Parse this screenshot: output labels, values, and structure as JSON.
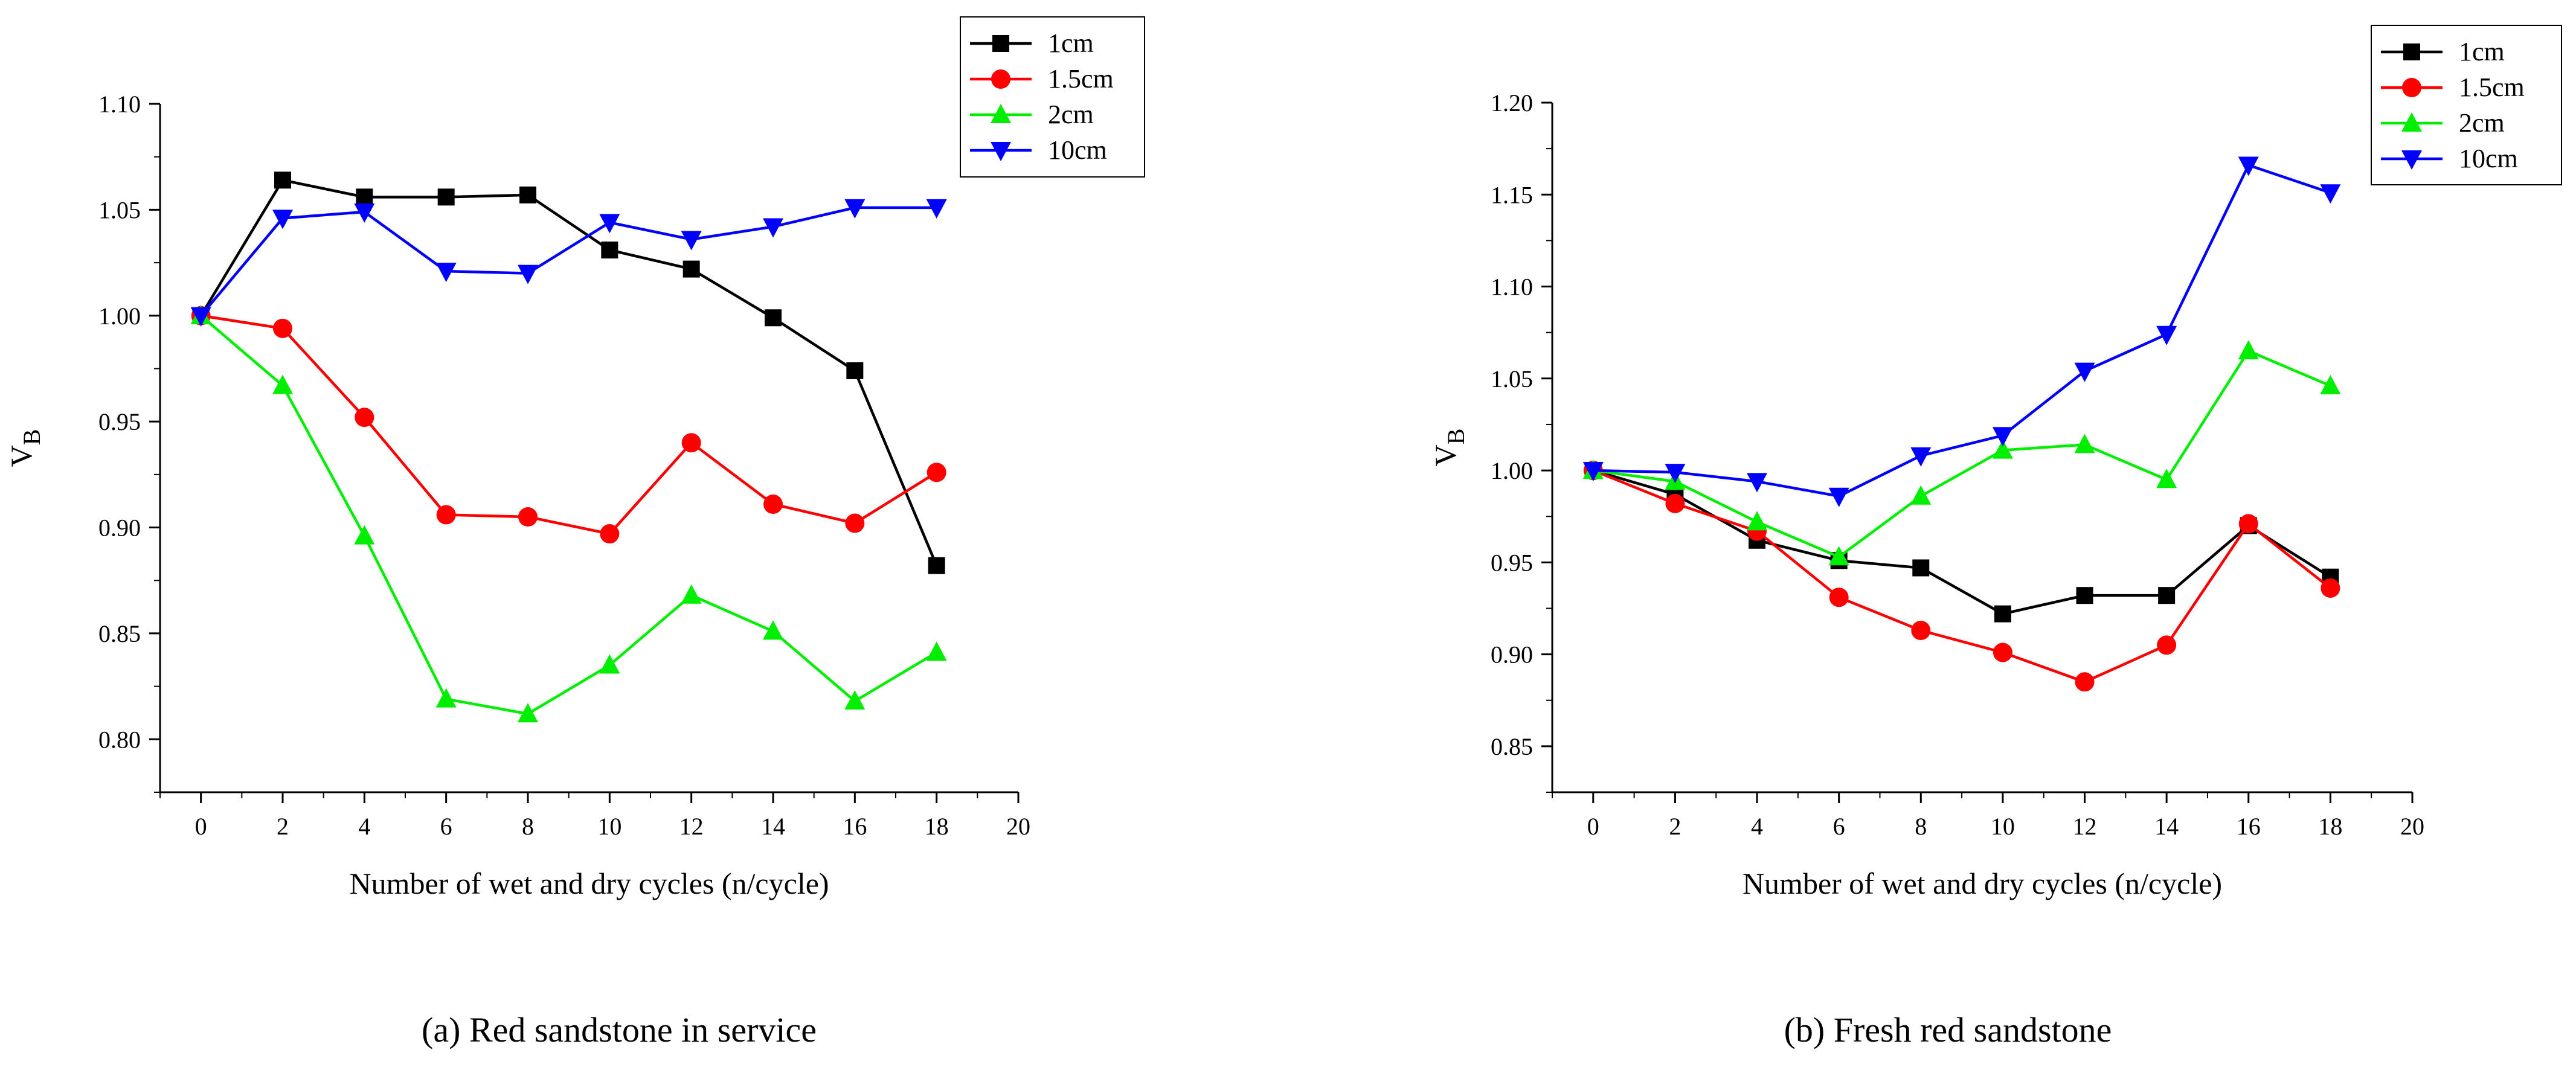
{
  "figure": {
    "caption_a": "(a)  Red sandstone in service",
    "caption_b": "(b)  Fresh red sandstone"
  },
  "chart_data": [
    {
      "type": "line",
      "xlabel": "Number of wet and dry cycles (n/cycle)",
      "ylabel": "V",
      "ylabel_sub": "B",
      "xlim": [
        -1,
        20
      ],
      "ylim": [
        0.775,
        1.1
      ],
      "xticks": [
        0,
        2,
        4,
        6,
        8,
        10,
        12,
        14,
        16,
        18,
        20
      ],
      "yticks": [
        0.8,
        0.85,
        0.9,
        0.95,
        1.0,
        1.05,
        1.1
      ],
      "legend_position": "top-right",
      "x": [
        0,
        2,
        4,
        6,
        8,
        10,
        12,
        14,
        16,
        18
      ],
      "series": [
        {
          "name": "1cm",
          "color": "#000000",
          "marker": "square",
          "values": [
            1.0,
            1.064,
            1.056,
            1.056,
            1.057,
            1.031,
            1.022,
            0.999,
            0.974,
            0.882
          ]
        },
        {
          "name": "1.5cm",
          "color": "#ff0000",
          "marker": "circle",
          "values": [
            1.0,
            0.994,
            0.952,
            0.906,
            0.905,
            0.897,
            0.94,
            0.911,
            0.902,
            0.926
          ]
        },
        {
          "name": "2cm",
          "color": "#00ee00",
          "marker": "triangle-up",
          "values": [
            1.0,
            0.967,
            0.896,
            0.819,
            0.812,
            0.835,
            0.868,
            0.851,
            0.818,
            0.841
          ]
        },
        {
          "name": "10cm",
          "color": "#0000ff",
          "marker": "triangle-down",
          "values": [
            1.0,
            1.046,
            1.049,
            1.021,
            1.02,
            1.044,
            1.036,
            1.042,
            1.051,
            1.051
          ]
        }
      ]
    },
    {
      "type": "line",
      "xlabel": "Number of wet and dry cycles (n/cycle)",
      "ylabel": "V",
      "ylabel_sub": "B",
      "xlim": [
        -1,
        20
      ],
      "ylim": [
        0.825,
        1.2
      ],
      "xticks": [
        0,
        2,
        4,
        6,
        8,
        10,
        12,
        14,
        16,
        18,
        20
      ],
      "yticks": [
        0.85,
        0.9,
        0.95,
        1.0,
        1.05,
        1.1,
        1.15,
        1.2
      ],
      "legend_position": "top-right",
      "x": [
        0,
        2,
        4,
        6,
        8,
        10,
        12,
        14,
        16,
        18
      ],
      "series": [
        {
          "name": "1cm",
          "color": "#000000",
          "marker": "square",
          "values": [
            1.0,
            0.987,
            0.962,
            0.951,
            0.947,
            0.922,
            0.932,
            0.932,
            0.97,
            0.942
          ]
        },
        {
          "name": "1.5cm",
          "color": "#ff0000",
          "marker": "circle",
          "values": [
            1.0,
            0.982,
            0.967,
            0.931,
            0.913,
            0.901,
            0.885,
            0.905,
            0.971,
            0.936
          ]
        },
        {
          "name": "2cm",
          "color": "#00ee00",
          "marker": "triangle-up",
          "values": [
            1.0,
            0.994,
            0.972,
            0.953,
            0.986,
            1.011,
            1.014,
            0.995,
            1.065,
            1.046
          ]
        },
        {
          "name": "10cm",
          "color": "#0000ff",
          "marker": "triangle-down",
          "values": [
            1.0,
            0.999,
            0.994,
            0.986,
            1.008,
            1.019,
            1.054,
            1.074,
            1.166,
            1.151
          ]
        }
      ]
    }
  ]
}
